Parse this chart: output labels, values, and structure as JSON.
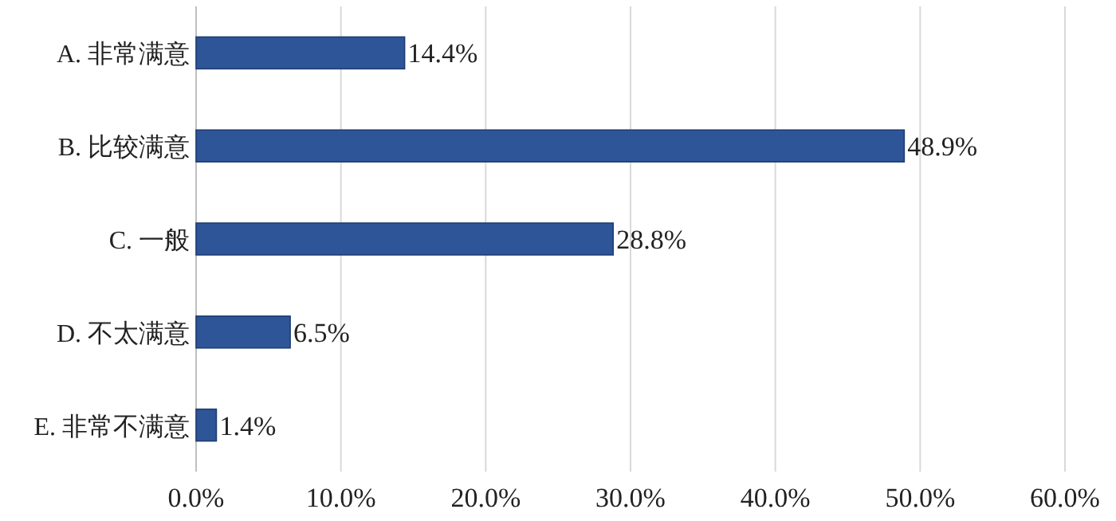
{
  "chart_data": {
    "type": "bar",
    "orientation": "horizontal",
    "categories": [
      "A. 非常满意",
      "B. 比较满意",
      "C. 一般",
      "D. 不太满意",
      "E. 非常不满意"
    ],
    "values": [
      14.4,
      48.9,
      28.8,
      6.5,
      1.4
    ],
    "value_labels": [
      "14.4%",
      "48.9%",
      "28.8%",
      "6.5%",
      "1.4%"
    ],
    "color": "#2e5597",
    "xlim": [
      0,
      60
    ],
    "xticks": [
      {
        "value": 0,
        "label": "0.0%"
      },
      {
        "value": 10,
        "label": "10.0%"
      },
      {
        "value": 20,
        "label": "20.0%"
      },
      {
        "value": 30,
        "label": "30.0%"
      },
      {
        "value": 40,
        "label": "40.0%"
      },
      {
        "value": 50,
        "label": "50.0%"
      },
      {
        "value": 60,
        "label": "60.0%"
      }
    ],
    "grid": "x"
  }
}
